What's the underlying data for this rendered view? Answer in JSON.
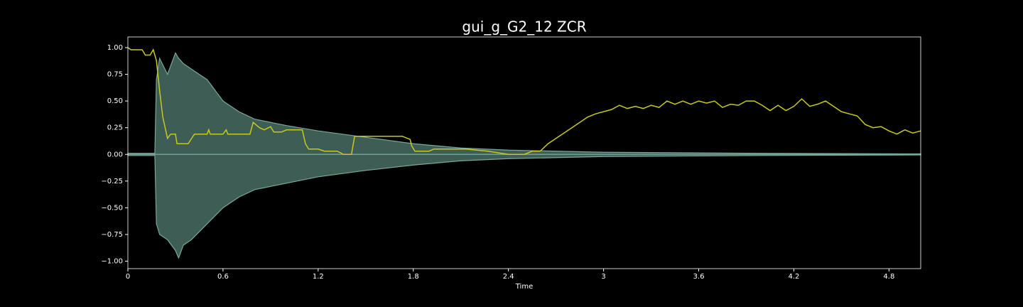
{
  "chart_data": {
    "type": "waveplot",
    "title": "gui_g_G2_12 ZCR",
    "x_label": "Time",
    "xlim": [
      0,
      5.0
    ],
    "ylim": [
      -1.07,
      1.1
    ],
    "xticks": [
      0,
      0.6,
      1.2,
      1.8,
      2.4,
      3,
      3.6,
      4.2,
      4.8
    ],
    "yticks": [
      {
        "value": -1,
        "label": "−1.00"
      },
      {
        "value": -0.75,
        "label": "−0.75"
      },
      {
        "value": -0.5,
        "label": "−0.50"
      },
      {
        "value": -0.25,
        "label": "−0.25"
      },
      {
        "value": 0,
        "label": "0.00"
      },
      {
        "value": 0.25,
        "label": "0.25"
      },
      {
        "value": 0.5,
        "label": "0.50"
      },
      {
        "value": 0.75,
        "label": "0.75"
      },
      {
        "value": 1,
        "label": "1.00"
      }
    ],
    "envelope": {
      "color": "#3e5d55",
      "edge_color": "#76a89b",
      "x": [
        0,
        0.17,
        0.18,
        0.2,
        0.25,
        0.3,
        0.32,
        0.35,
        0.4,
        0.5,
        0.6,
        0.7,
        0.8,
        1.0,
        1.2,
        1.5,
        1.8,
        2.1,
        2.4,
        2.7,
        3.0,
        4.0,
        5.0
      ],
      "upper": [
        0.01,
        0.01,
        0.7,
        0.9,
        0.75,
        0.95,
        0.9,
        0.85,
        0.8,
        0.7,
        0.5,
        0.4,
        0.33,
        0.27,
        0.22,
        0.16,
        0.1,
        0.06,
        0.04,
        0.03,
        0.02,
        0.01,
        0.005
      ],
      "lower": [
        -0.01,
        -0.01,
        -0.65,
        -0.75,
        -0.8,
        -0.9,
        -0.97,
        -0.85,
        -0.8,
        -0.65,
        -0.5,
        -0.4,
        -0.33,
        -0.27,
        -0.21,
        -0.15,
        -0.1,
        -0.06,
        -0.04,
        -0.03,
        -0.02,
        -0.01,
        -0.005
      ]
    },
    "zcr": {
      "color": "#c8c81e",
      "x": [
        0,
        0.02,
        0.09,
        0.11,
        0.14,
        0.16,
        0.18,
        0.2,
        0.22,
        0.25,
        0.27,
        0.3,
        0.31,
        0.38,
        0.42,
        0.5,
        0.51,
        0.52,
        0.6,
        0.62,
        0.63,
        0.77,
        0.79,
        0.83,
        0.86,
        0.9,
        0.92,
        0.97,
        1.0,
        1.1,
        1.12,
        1.14,
        1.2,
        1.24,
        1.32,
        1.36,
        1.41,
        1.43,
        1.73,
        1.78,
        1.79,
        1.81,
        1.9,
        1.93,
        2.13,
        2.27,
        2.4,
        2.5,
        2.55,
        2.6,
        2.65,
        2.7,
        2.8,
        2.9,
        2.95,
        3.0,
        3.05,
        3.1,
        3.15,
        3.2,
        3.25,
        3.3,
        3.35,
        3.4,
        3.45,
        3.5,
        3.55,
        3.6,
        3.65,
        3.7,
        3.75,
        3.8,
        3.85,
        3.9,
        3.95,
        4.0,
        4.05,
        4.1,
        4.15,
        4.2,
        4.25,
        4.3,
        4.35,
        4.4,
        4.45,
        4.5,
        4.55,
        4.6,
        4.65,
        4.7,
        4.75,
        4.8,
        4.85,
        4.9,
        4.95,
        5.0
      ],
      "values": [
        1.0,
        0.98,
        0.98,
        0.93,
        0.93,
        0.98,
        0.88,
        0.6,
        0.35,
        0.15,
        0.19,
        0.19,
        0.1,
        0.1,
        0.19,
        0.19,
        0.23,
        0.19,
        0.19,
        0.23,
        0.19,
        0.19,
        0.3,
        0.25,
        0.23,
        0.26,
        0.21,
        0.21,
        0.23,
        0.23,
        0.1,
        0.05,
        0.05,
        0.03,
        0.03,
        0.0,
        0.0,
        0.17,
        0.17,
        0.14,
        0.08,
        0.03,
        0.03,
        0.05,
        0.05,
        0.03,
        0.0,
        0.0,
        0.03,
        0.03,
        0.1,
        0.15,
        0.25,
        0.35,
        0.38,
        0.4,
        0.42,
        0.46,
        0.43,
        0.45,
        0.43,
        0.46,
        0.44,
        0.5,
        0.47,
        0.5,
        0.47,
        0.5,
        0.48,
        0.5,
        0.44,
        0.47,
        0.46,
        0.5,
        0.5,
        0.46,
        0.41,
        0.46,
        0.41,
        0.45,
        0.52,
        0.45,
        0.47,
        0.5,
        0.45,
        0.4,
        0.38,
        0.36,
        0.28,
        0.25,
        0.26,
        0.22,
        0.19,
        0.23,
        0.2,
        0.22
      ]
    }
  }
}
